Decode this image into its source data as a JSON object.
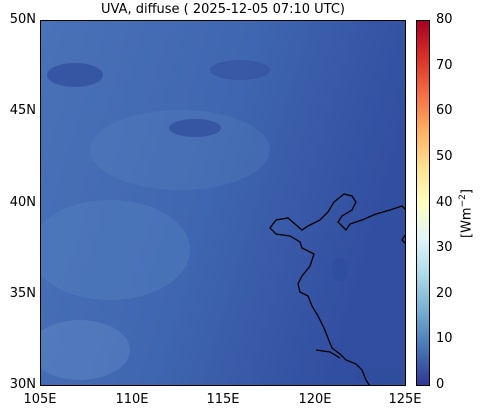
{
  "title": "UVA, diffuse ( 2025-12-05 07:10 UTC)",
  "map": {
    "lon_range": [
      105,
      125
    ],
    "lat_range": [
      30,
      50
    ],
    "x_ticks": [
      "105E",
      "110E",
      "115E",
      "120E",
      "125E"
    ],
    "y_ticks": [
      "50N",
      "45N",
      "40N",
      "35N",
      "30N"
    ],
    "field_colors": {
      "base": "#3d66b0",
      "light": "#5a86c4",
      "dark": "#2f4c9c"
    }
  },
  "colorbar": {
    "label_main": "[Wm",
    "label_sup": "−2",
    "label_end": "]",
    "range": [
      0,
      80
    ],
    "ticks": [
      "80",
      "70",
      "60",
      "50",
      "40",
      "30",
      "20",
      "10",
      "0"
    ],
    "colormap": "RdYlBu_r"
  }
}
